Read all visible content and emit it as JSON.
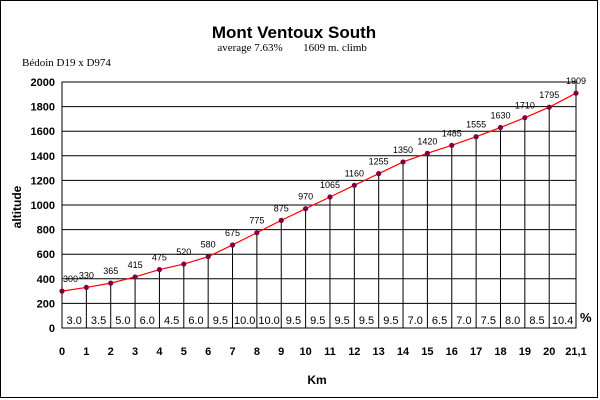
{
  "chart_data": {
    "type": "line",
    "title": "Mont Ventoux South",
    "subtitle_average": "average 7.63%",
    "subtitle_climb": "1609 m. climb",
    "corner_label": "Bédoin D19 x D974",
    "xlabel": "Km",
    "ylabel": "altitude",
    "grade_unit_label": "%",
    "ylim": [
      0,
      2000
    ],
    "y_ticks": [
      "0",
      "200",
      "400",
      "600",
      "800",
      "1000",
      "1200",
      "1400",
      "1600",
      "1800",
      "2000"
    ],
    "x": [
      0,
      1,
      2,
      3,
      4,
      5,
      6,
      7,
      8,
      9,
      10,
      11,
      12,
      13,
      14,
      15,
      16,
      17,
      18,
      19,
      20,
      21.1
    ],
    "x_tick_labels": [
      "0",
      "1",
      "2",
      "3",
      "4",
      "5",
      "6",
      "7",
      "8",
      "9",
      "10",
      "11",
      "12",
      "13",
      "14",
      "15",
      "16",
      "17",
      "18",
      "19",
      "20",
      "21,1"
    ],
    "values": [
      300,
      330,
      365,
      415,
      475,
      520,
      580,
      675,
      775,
      875,
      970,
      1065,
      1160,
      1255,
      1350,
      1420,
      1485,
      1555,
      1630,
      1710,
      1795,
      1909
    ],
    "grades": [
      "3.0",
      "3.5",
      "5.0",
      "6.0",
      "4.5",
      "6.0",
      "9.5",
      "10.0",
      "10.0",
      "9.5",
      "9.5",
      "9.5",
      "9.5",
      "9.5",
      "7.0",
      "6.5",
      "7.0",
      "7.5",
      "8.0",
      "8.5",
      "10.4"
    ],
    "grid": true,
    "colors": {
      "line": "#ff0000",
      "marker": "#800040",
      "grid": "#000000"
    }
  }
}
